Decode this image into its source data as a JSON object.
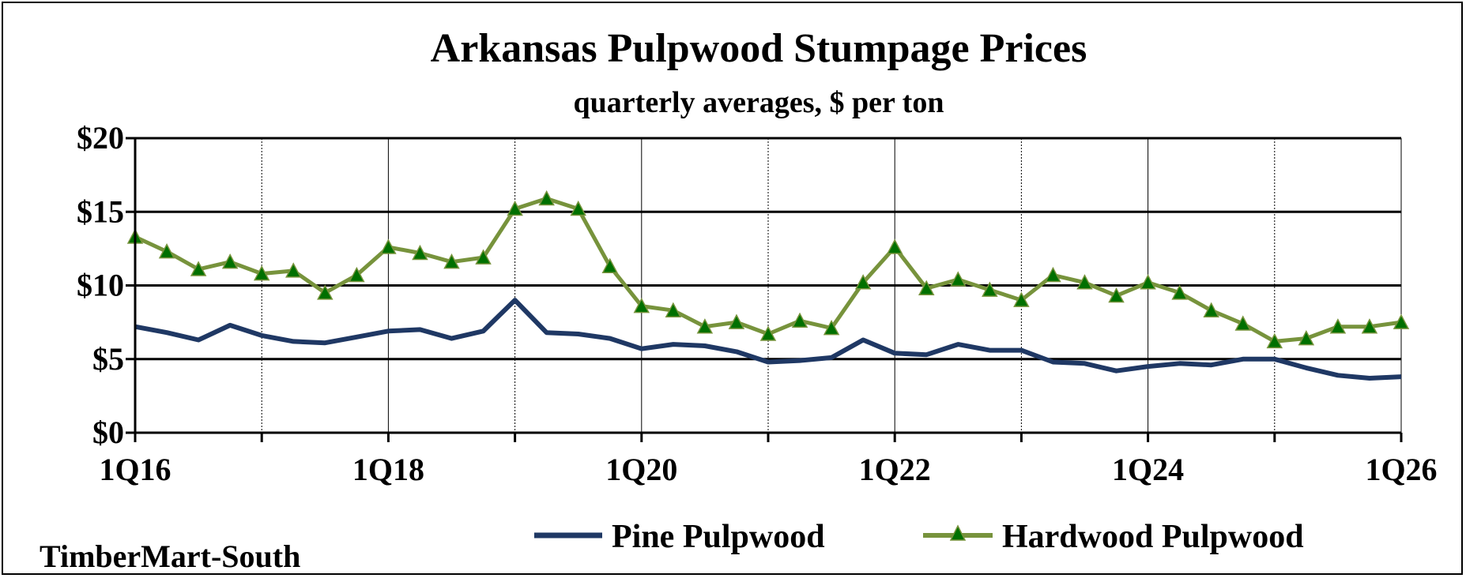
{
  "chart_data": {
    "type": "line",
    "title": "Arkansas Pulpwood Stumpage Prices",
    "subtitle": "quarterly averages, $ per ton",
    "source": "TimberMart-South",
    "xlabel": "",
    "ylabel": "",
    "ylim": [
      0,
      20
    ],
    "y_ticks": [
      "$0",
      "$5",
      "$10",
      "$15",
      "$20"
    ],
    "y_tick_values": [
      0,
      5,
      10,
      15,
      20
    ],
    "x_tick_labels": [
      "1Q16",
      "1Q18",
      "1Q20",
      "1Q22",
      "1Q24",
      "1Q26"
    ],
    "x_tick_labels_index": [
      0,
      8,
      16,
      24,
      32,
      40
    ],
    "minor_gridline_index": [
      4,
      12,
      20,
      28,
      36
    ],
    "grid": true,
    "legend_position": "bottom",
    "x": [
      "1Q16",
      "2Q16",
      "3Q16",
      "4Q16",
      "1Q17",
      "2Q17",
      "3Q17",
      "4Q17",
      "1Q18",
      "2Q18",
      "3Q18",
      "4Q18",
      "1Q19",
      "2Q19",
      "3Q19",
      "4Q19",
      "1Q20",
      "2Q20",
      "3Q20",
      "4Q20",
      "1Q21",
      "2Q21",
      "3Q21",
      "4Q21",
      "1Q22",
      "2Q22",
      "3Q22",
      "4Q22",
      "1Q23",
      "2Q23",
      "3Q23",
      "4Q23",
      "1Q24",
      "2Q24",
      "3Q24",
      "4Q24",
      "1Q25",
      "2Q25",
      "3Q25",
      "4Q25",
      "1Q26"
    ],
    "series": [
      {
        "name": "Pine Pulpwood",
        "color": "#1f3864",
        "marker": "none",
        "values": [
          7.2,
          6.8,
          6.3,
          7.3,
          6.6,
          6.2,
          6.1,
          6.5,
          6.9,
          7.0,
          6.4,
          6.9,
          9.0,
          6.8,
          6.7,
          6.4,
          5.7,
          6.0,
          5.9,
          5.5,
          4.8,
          4.9,
          5.1,
          6.3,
          5.4,
          5.3,
          6.0,
          5.6,
          5.6,
          4.8,
          4.7,
          4.2,
          4.5,
          4.7,
          4.6,
          5.0,
          5.0,
          4.4,
          3.9,
          3.7,
          3.8
        ]
      },
      {
        "name": "Hardwood Pulpwood",
        "color": "#77933c",
        "marker": "triangle",
        "marker_color": "#007000",
        "values": [
          13.3,
          12.3,
          11.1,
          11.6,
          10.8,
          11.0,
          9.5,
          10.7,
          12.6,
          12.2,
          11.6,
          11.9,
          15.2,
          15.9,
          15.2,
          11.3,
          8.6,
          8.3,
          7.2,
          7.5,
          6.7,
          7.6,
          7.1,
          10.2,
          12.6,
          9.8,
          10.4,
          9.7,
          9.0,
          10.7,
          10.2,
          9.3,
          10.2,
          9.5,
          8.3,
          7.4,
          6.2,
          6.4,
          7.2,
          7.2,
          7.5
        ]
      }
    ]
  }
}
